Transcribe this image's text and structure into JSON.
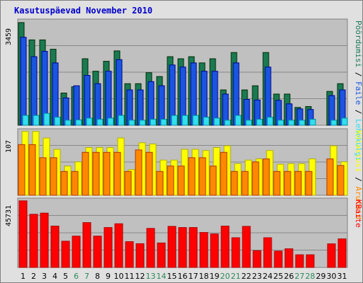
{
  "chart_data": [
    {
      "type": "bar",
      "title": "Kasutuspäevad November 2010",
      "panel": "top",
      "categories": [
        "1",
        "2",
        "3",
        "4",
        "5",
        "6",
        "7",
        "8",
        "9",
        "10",
        "11",
        "12",
        "13",
        "14",
        "15",
        "16",
        "17",
        "18",
        "19",
        "20",
        "21",
        "22",
        "23",
        "24",
        "25",
        "26",
        "27",
        "28",
        "29",
        "30",
        "31"
      ],
      "weekend_days": [
        "6",
        "7",
        "13",
        "14",
        "20",
        "21",
        "27",
        "28"
      ],
      "ylabel": [
        "Pöördumisi",
        "Faile",
        "Lehekülgi"
      ],
      "max_tick": "3459",
      "series": [
        {
          "name": "Pöördumisi",
          "color": "#1a7a52",
          "values": [
            3459,
            2875,
            2875,
            2560,
            1085,
            1295,
            2240,
            1820,
            2155,
            2505,
            1400,
            1400,
            1770,
            1640,
            2310,
            2240,
            2310,
            2100,
            2240,
            1190,
            2450,
            1190,
            1330,
            2450,
            1050,
            1050,
            600,
            630,
            0,
            1140,
            1400
          ]
        },
        {
          "name": "Faile",
          "color": "#1a55e0",
          "values": [
            2965,
            2310,
            2490,
            2100,
            920,
            1330,
            1680,
            1400,
            1820,
            2210,
            1190,
            1190,
            1470,
            1330,
            2030,
            1960,
            2100,
            1820,
            1820,
            1050,
            2100,
            870,
            850,
            1960,
            840,
            720,
            550,
            530,
            0,
            1000,
            1190
          ]
        },
        {
          "name": "Lehekülgi",
          "color": "#33ddee",
          "values": [
            330,
            330,
            400,
            270,
            170,
            180,
            240,
            200,
            240,
            330,
            170,
            170,
            200,
            200,
            330,
            330,
            330,
            270,
            240,
            170,
            330,
            170,
            200,
            270,
            170,
            170,
            170,
            200,
            0,
            170,
            240
          ]
        }
      ]
    },
    {
      "type": "bar",
      "panel": "middle",
      "categories": [
        "1",
        "2",
        "3",
        "4",
        "5",
        "6",
        "7",
        "8",
        "9",
        "10",
        "11",
        "12",
        "13",
        "14",
        "15",
        "16",
        "17",
        "18",
        "19",
        "20",
        "21",
        "22",
        "23",
        "24",
        "25",
        "26",
        "27",
        "28",
        "29",
        "30",
        "31"
      ],
      "ylabel": [
        "Külastusi",
        "Aruteid"
      ],
      "max_tick": "107",
      "series": [
        {
          "name": "Külastusi",
          "color": "#ffff00",
          "values": [
            107,
            107,
            96,
            77,
            49,
            56,
            80,
            80,
            80,
            96,
            43,
            88,
            86,
            59,
            59,
            77,
            77,
            75,
            80,
            83,
            53,
            59,
            61,
            75,
            52,
            53,
            53,
            61,
            0,
            83,
            56
          ]
        },
        {
          "name": "Aruteid",
          "color": "#ff8800",
          "values": [
            85,
            85,
            63,
            63,
            40,
            40,
            72,
            72,
            72,
            72,
            40,
            76,
            72,
            40,
            49,
            49,
            63,
            63,
            49,
            72,
            40,
            40,
            56,
            61,
            40,
            40,
            40,
            40,
            0,
            61,
            50
          ]
        }
      ]
    },
    {
      "type": "bar",
      "panel": "bottom",
      "categories": [
        "1",
        "2",
        "3",
        "4",
        "5",
        "6",
        "7",
        "8",
        "9",
        "10",
        "11",
        "12",
        "13",
        "14",
        "15",
        "16",
        "17",
        "18",
        "19",
        "20",
        "21",
        "22",
        "23",
        "24",
        "25",
        "26",
        "27",
        "28",
        "29",
        "30",
        "31"
      ],
      "ylabel": "KBaite",
      "max_tick": "45731",
      "series": [
        {
          "name": "KBaite",
          "color": "#ff0000",
          "values": [
            45731,
            36500,
            37300,
            28400,
            18000,
            21500,
            30800,
            21500,
            27400,
            30000,
            17700,
            16300,
            26800,
            16800,
            28200,
            27400,
            27400,
            24000,
            23000,
            28400,
            20400,
            28200,
            11500,
            20400,
            11200,
            12800,
            8700,
            8700,
            0,
            16200,
            19600
          ]
        }
      ]
    }
  ]
}
